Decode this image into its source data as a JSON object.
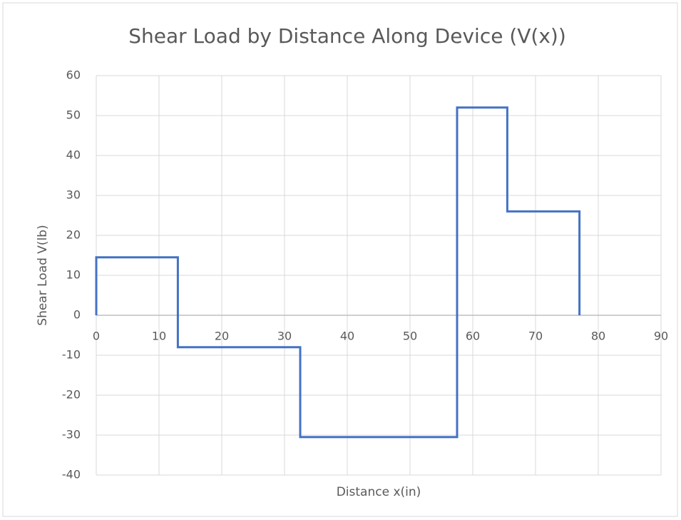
{
  "chart_data": {
    "type": "line",
    "title": "Shear Load by Distance Along Device (V(x))",
    "x_label": "Distance x(in)",
    "y_label": "Shear Load V(lb)",
    "x": [
      0,
      0,
      13,
      13,
      32.5,
      32.5,
      57.5,
      57.5,
      65.5,
      65.5,
      77,
      77
    ],
    "values": [
      0,
      14.5,
      14.5,
      -8,
      -8,
      -30.5,
      -30.5,
      52,
      52,
      26,
      26,
      0
    ],
    "color": "#4472c4",
    "xlim": [
      0,
      90
    ],
    "xticks": [
      0,
      10,
      20,
      30,
      40,
      50,
      60,
      70,
      80,
      90
    ],
    "ylim": [
      -40,
      60
    ],
    "yticks": [
      -40,
      -30,
      -20,
      -10,
      0,
      10,
      20,
      30,
      40,
      50,
      60
    ],
    "grid": true
  }
}
